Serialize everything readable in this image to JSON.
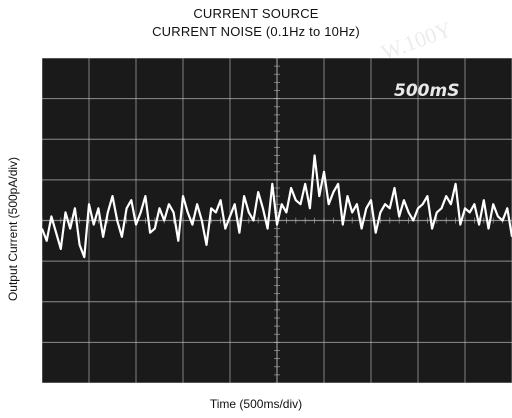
{
  "header": {
    "title_line1": "CURRENT SOURCE",
    "title_line2": "CURRENT NOISE (0.1Hz to 10Hz)"
  },
  "colors": {
    "screen_background": "#1a1a1a",
    "graticule": "#bdbdbd",
    "trace": "#ffffff",
    "page_background": "#ffffff"
  },
  "chart_data": {
    "type": "line",
    "title": "CURRENT SOURCE CURRENT NOISE (0.1Hz to 10Hz)",
    "xlabel": "Time (500ms/div)",
    "ylabel": "Output Current (500pA/div)",
    "scope_annotation": "500mS",
    "x_unit": "s",
    "y_unit": "pA",
    "xlim": [
      0,
      5
    ],
    "ylim": [
      -2000,
      2000
    ],
    "divisions": {
      "x": 10,
      "y": 8
    },
    "grid": true,
    "legend": "none",
    "series": [
      {
        "x": [
          0.0,
          0.05,
          0.1,
          0.15,
          0.2,
          0.25,
          0.3,
          0.35,
          0.4,
          0.45,
          0.5,
          0.55,
          0.6,
          0.65,
          0.7,
          0.75,
          0.8,
          0.85,
          0.9,
          0.95,
          1.0,
          1.05,
          1.1,
          1.15,
          1.2,
          1.25,
          1.3,
          1.35,
          1.4,
          1.45,
          1.5,
          1.55,
          1.6,
          1.65,
          1.7,
          1.75,
          1.8,
          1.85,
          1.9,
          1.95,
          2.0,
          2.05,
          2.1,
          2.15,
          2.2,
          2.25,
          2.3,
          2.35,
          2.4,
          2.45,
          2.5,
          2.55,
          2.6,
          2.65,
          2.7,
          2.75,
          2.8,
          2.85,
          2.9,
          2.95,
          3.0,
          3.05,
          3.1,
          3.15,
          3.2,
          3.25,
          3.3,
          3.35,
          3.4,
          3.45,
          3.5,
          3.55,
          3.6,
          3.65,
          3.7,
          3.75,
          3.8,
          3.85,
          3.9,
          3.95,
          4.0,
          4.05,
          4.1,
          4.15,
          4.2,
          4.25,
          4.3,
          4.35,
          4.4,
          4.45,
          4.5,
          4.55,
          4.6,
          4.65,
          4.7,
          4.75,
          4.8,
          4.85,
          4.9,
          4.95,
          5.0
        ],
        "values": [
          -100,
          -250,
          50,
          -150,
          -350,
          100,
          -100,
          150,
          -300,
          -450,
          200,
          -50,
          150,
          -200,
          100,
          300,
          0,
          -200,
          150,
          250,
          -50,
          100,
          300,
          -150,
          -100,
          150,
          0,
          200,
          100,
          -250,
          300,
          100,
          -50,
          200,
          0,
          -300,
          150,
          100,
          250,
          -100,
          50,
          200,
          -150,
          300,
          100,
          0,
          350,
          150,
          -100,
          450,
          -50,
          200,
          100,
          400,
          250,
          200,
          450,
          150,
          800,
          300,
          600,
          200,
          350,
          450,
          -50,
          300,
          100,
          200,
          -100,
          150,
          250,
          -150,
          100,
          200,
          150,
          400,
          50,
          250,
          100,
          0,
          150,
          200,
          300,
          -100,
          100,
          150,
          300,
          200,
          450,
          -50,
          150,
          100,
          200,
          -50,
          250,
          -100,
          200,
          50,
          0,
          150,
          -200
        ]
      }
    ]
  }
}
